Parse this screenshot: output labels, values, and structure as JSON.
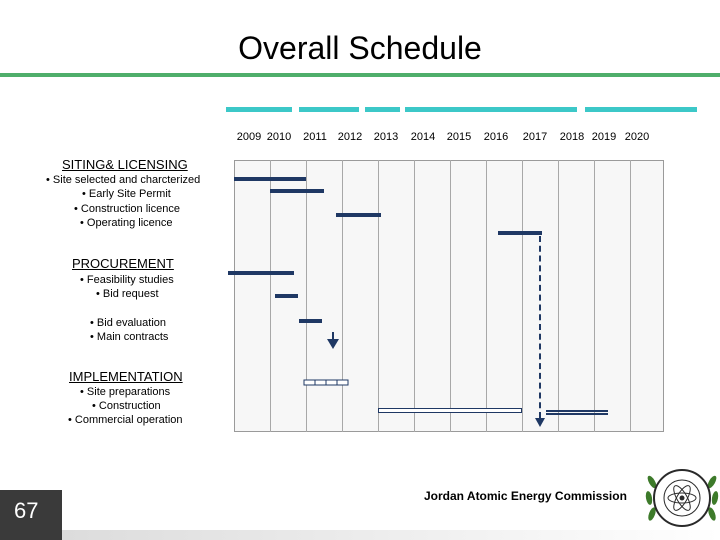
{
  "slide": {
    "title": "Overall Schedule",
    "page_number": "67"
  },
  "timeline": {
    "years": [
      "2009",
      "2010",
      "2011",
      "2012",
      "2013",
      "2014",
      "2015",
      "2016",
      "2017",
      "2018",
      "2019",
      "2020"
    ]
  },
  "sections": {
    "siting": {
      "heading": "SITING& LICENSING",
      "items": [
        "• Site selected and charcterized",
        "• Early Site Permit",
        "• Construction licence",
        "• Operating licence"
      ]
    },
    "procurement": {
      "heading": "PROCUREMENT",
      "items": [
        "• Feasibility studies",
        "• Bid request",
        "• Bid evaluation",
        "• Main contracts"
      ]
    },
    "implementation": {
      "heading": "IMPLEMENTATION",
      "items": [
        "• Site preparations",
        "• Construction",
        "• Commercial operation"
      ]
    }
  },
  "footer": {
    "organization": "Jordan Atomic Energy Commission"
  },
  "colors": {
    "accent_green": "#4fae6b",
    "teal": "#3cc8c8",
    "bar": "#1f3864"
  }
}
